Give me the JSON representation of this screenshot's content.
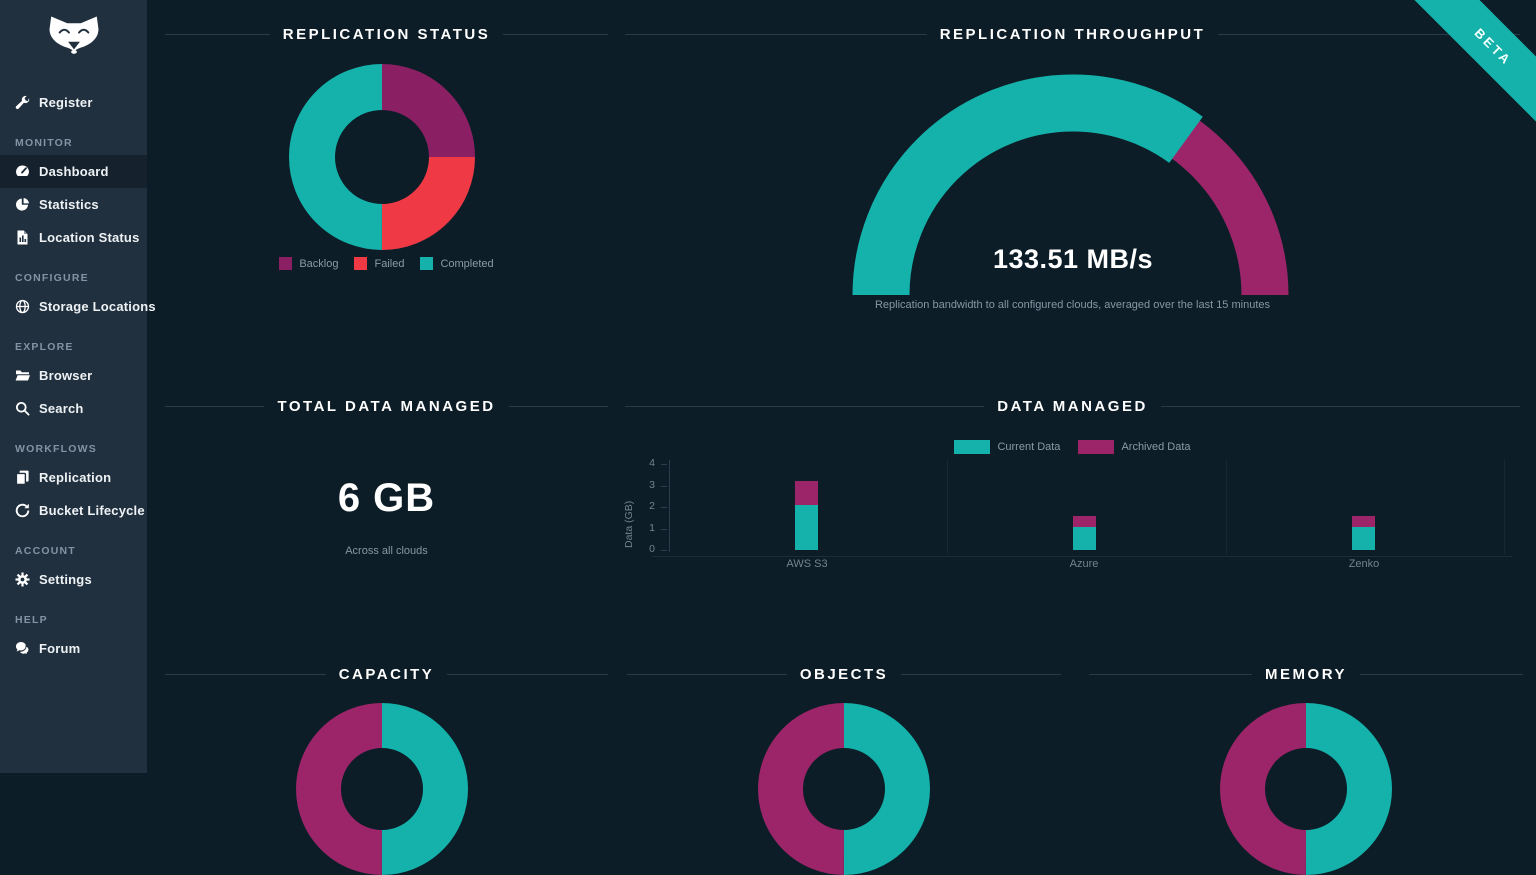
{
  "app": {
    "beta_label": "BETA"
  },
  "colors": {
    "teal": "#14b2aa",
    "magenta": "#9c2569",
    "purple": "#8b1f63",
    "red": "#ef3a46",
    "sidebar_bg": "#21303e",
    "main_bg": "#0c1d27"
  },
  "sidebar": {
    "groups": [
      {
        "items": [
          {
            "label": "Register",
            "icon": "wrench-icon"
          }
        ]
      },
      {
        "label": "MONITOR",
        "items": [
          {
            "label": "Dashboard",
            "icon": "dashboard-gauge-icon",
            "active": true
          },
          {
            "label": "Statistics",
            "icon": "pie-chart-icon"
          },
          {
            "label": "Location Status",
            "icon": "file-chart-icon"
          }
        ]
      },
      {
        "label": "CONFIGURE",
        "items": [
          {
            "label": "Storage Locations",
            "icon": "globe-icon"
          }
        ]
      },
      {
        "label": "EXPLORE",
        "items": [
          {
            "label": "Browser",
            "icon": "folder-open-icon"
          },
          {
            "label": "Search",
            "icon": "search-icon"
          }
        ]
      },
      {
        "label": "WORKFLOWS",
        "items": [
          {
            "label": "Replication",
            "icon": "copy-icon"
          },
          {
            "label": "Bucket Lifecycle",
            "icon": "lifecycle-icon"
          }
        ]
      },
      {
        "label": "ACCOUNT",
        "items": [
          {
            "label": "Settings",
            "icon": "gear-icon"
          }
        ]
      },
      {
        "label": "HELP",
        "items": [
          {
            "label": "Forum",
            "icon": "forum-icon"
          }
        ]
      }
    ]
  },
  "chart_data": [
    {
      "id": "replication-status",
      "type": "pie",
      "title": "REPLICATION STATUS",
      "legend_position": "bottom",
      "slices": [
        {
          "label": "Backlog",
          "color": "#8b1f63",
          "fraction": 0.25
        },
        {
          "label": "Failed",
          "color": "#ef3a46",
          "fraction": 0.25
        },
        {
          "label": "Completed",
          "color": "#14b2aa",
          "fraction": 0.5
        }
      ]
    },
    {
      "id": "replication-throughput",
      "type": "gauge",
      "title": "REPLICATION THROUGHPUT",
      "value_label": "133.51 MB/s",
      "fraction": 0.7,
      "value_color": "#14b2aa",
      "track_color": "#9c2569",
      "caption": "Replication bandwidth to all configured clouds, averaged over the last 15 minutes"
    },
    {
      "id": "total-data-managed",
      "type": "stat",
      "title": "TOTAL DATA MANAGED",
      "value": "6 GB",
      "caption": "Across all clouds"
    },
    {
      "id": "data-managed",
      "type": "bar",
      "title": "DATA MANAGED",
      "ylabel": "Data (GB)",
      "ylim": [
        0,
        4
      ],
      "yticks": [
        0,
        1,
        2,
        3,
        4
      ],
      "legend_position": "top",
      "grid": "faint-vertical",
      "categories": [
        "AWS S3",
        "Azure",
        "Zenko"
      ],
      "series": [
        {
          "name": "Current Data",
          "color": "#14b2aa",
          "values": [
            2.1,
            1.05,
            1.05
          ]
        },
        {
          "name": "Archived Data",
          "color": "#9c2569",
          "values": [
            1.1,
            0.55,
            0.55
          ]
        }
      ]
    },
    {
      "id": "capacity",
      "type": "pie",
      "title": "CAPACITY",
      "slices": [
        {
          "color": "#14b2aa",
          "fraction": 0.5
        },
        {
          "color": "#9c2569",
          "fraction": 0.5
        }
      ]
    },
    {
      "id": "objects",
      "type": "pie",
      "title": "OBJECTS",
      "slices": [
        {
          "color": "#14b2aa",
          "fraction": 0.5
        },
        {
          "color": "#9c2569",
          "fraction": 0.5
        }
      ]
    },
    {
      "id": "memory",
      "type": "pie",
      "title": "MEMORY",
      "slices": [
        {
          "color": "#14b2aa",
          "fraction": 0.5
        },
        {
          "color": "#9c2569",
          "fraction": 0.5
        }
      ]
    }
  ]
}
